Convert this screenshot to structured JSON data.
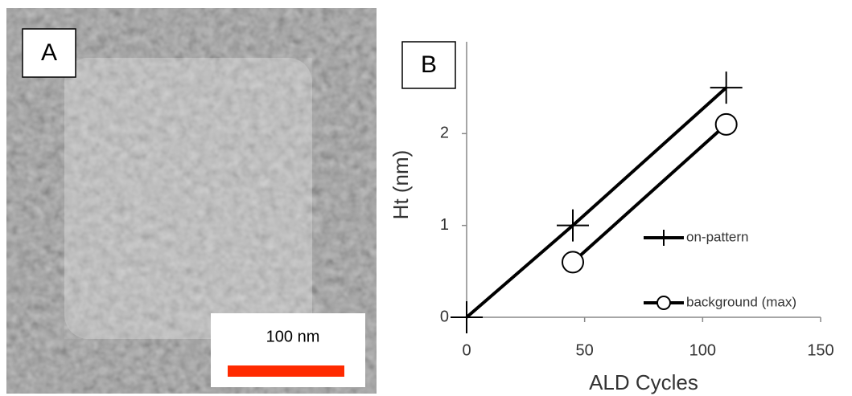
{
  "panel_a": {
    "label": "A",
    "scale_bar": "100 nm"
  },
  "chart_data": {
    "type": "line",
    "panel_label": "B",
    "x_label": "ALD Cycles",
    "y_label": "Ht (nm)",
    "xlim": [
      0,
      150
    ],
    "xticks": [
      0,
      50,
      100,
      150
    ],
    "ylim": [
      0,
      3
    ],
    "yticks": [
      0,
      1,
      2
    ],
    "series": [
      {
        "name": "on-pattern",
        "color": "#000000",
        "marker": "plus",
        "x": [
          0,
          45,
          110
        ],
        "values": [
          0,
          1,
          2.5
        ]
      },
      {
        "name": "background (max)",
        "color": "#000000",
        "marker": "circle",
        "x": [
          45,
          110
        ],
        "values": [
          0.6,
          2.1
        ]
      }
    ]
  }
}
